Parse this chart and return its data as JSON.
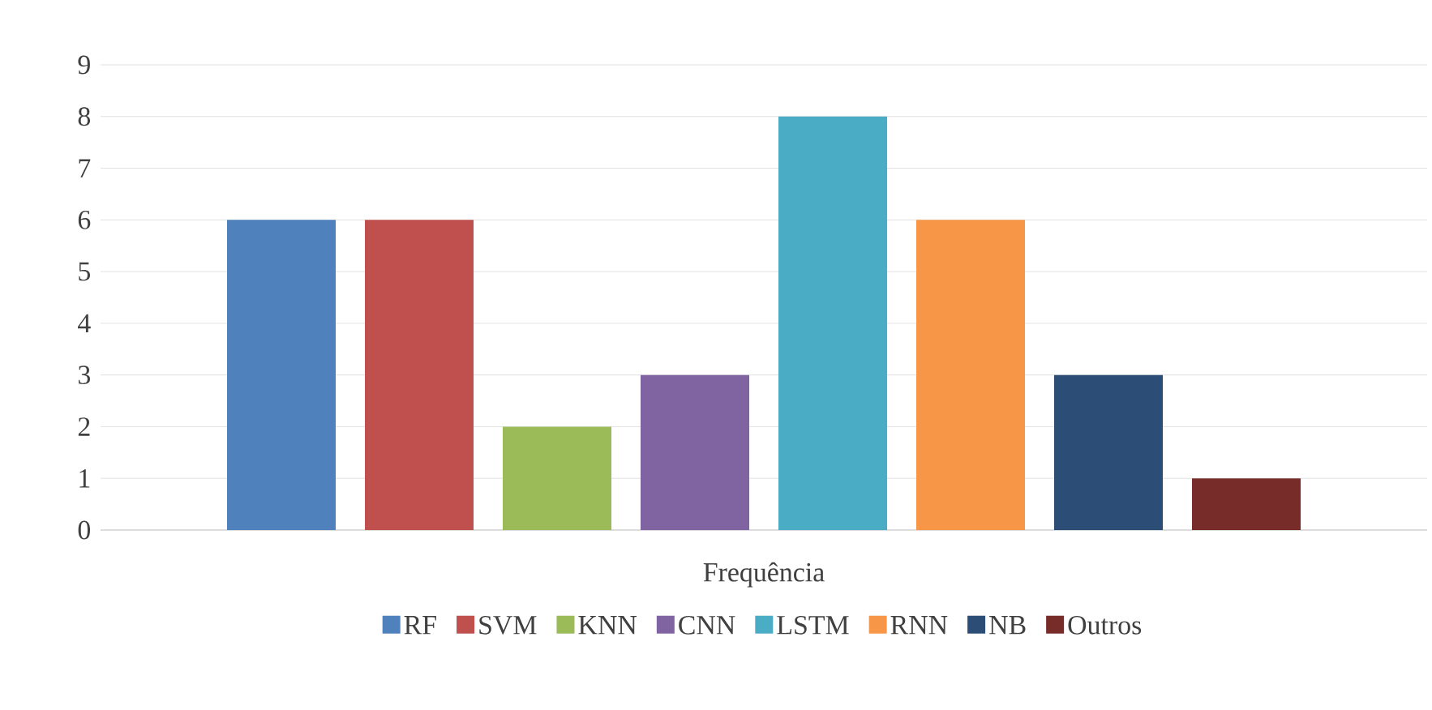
{
  "chart_data": {
    "type": "bar",
    "categories": [
      "Frequência"
    ],
    "series": [
      {
        "name": "RF",
        "color": "#4f81bd",
        "values": [
          6
        ]
      },
      {
        "name": "SVM",
        "color": "#c0504d",
        "values": [
          6
        ]
      },
      {
        "name": "KNN",
        "color": "#9bbb59",
        "values": [
          2
        ]
      },
      {
        "name": "CNN",
        "color": "#8064a2",
        "values": [
          3
        ]
      },
      {
        "name": "LSTM",
        "color": "#4bacc6",
        "values": [
          8
        ]
      },
      {
        "name": "RNN",
        "color": "#f79646",
        "values": [
          6
        ]
      },
      {
        "name": "NB",
        "color": "#2c4d75",
        "values": [
          3
        ]
      },
      {
        "name": "Outros",
        "color": "#772c2a",
        "values": [
          1
        ]
      }
    ],
    "ylim": [
      0,
      9
    ],
    "yticks": [
      0,
      1,
      2,
      3,
      4,
      5,
      6,
      7,
      8,
      9
    ],
    "grid": "y",
    "legend": "bottom"
  }
}
